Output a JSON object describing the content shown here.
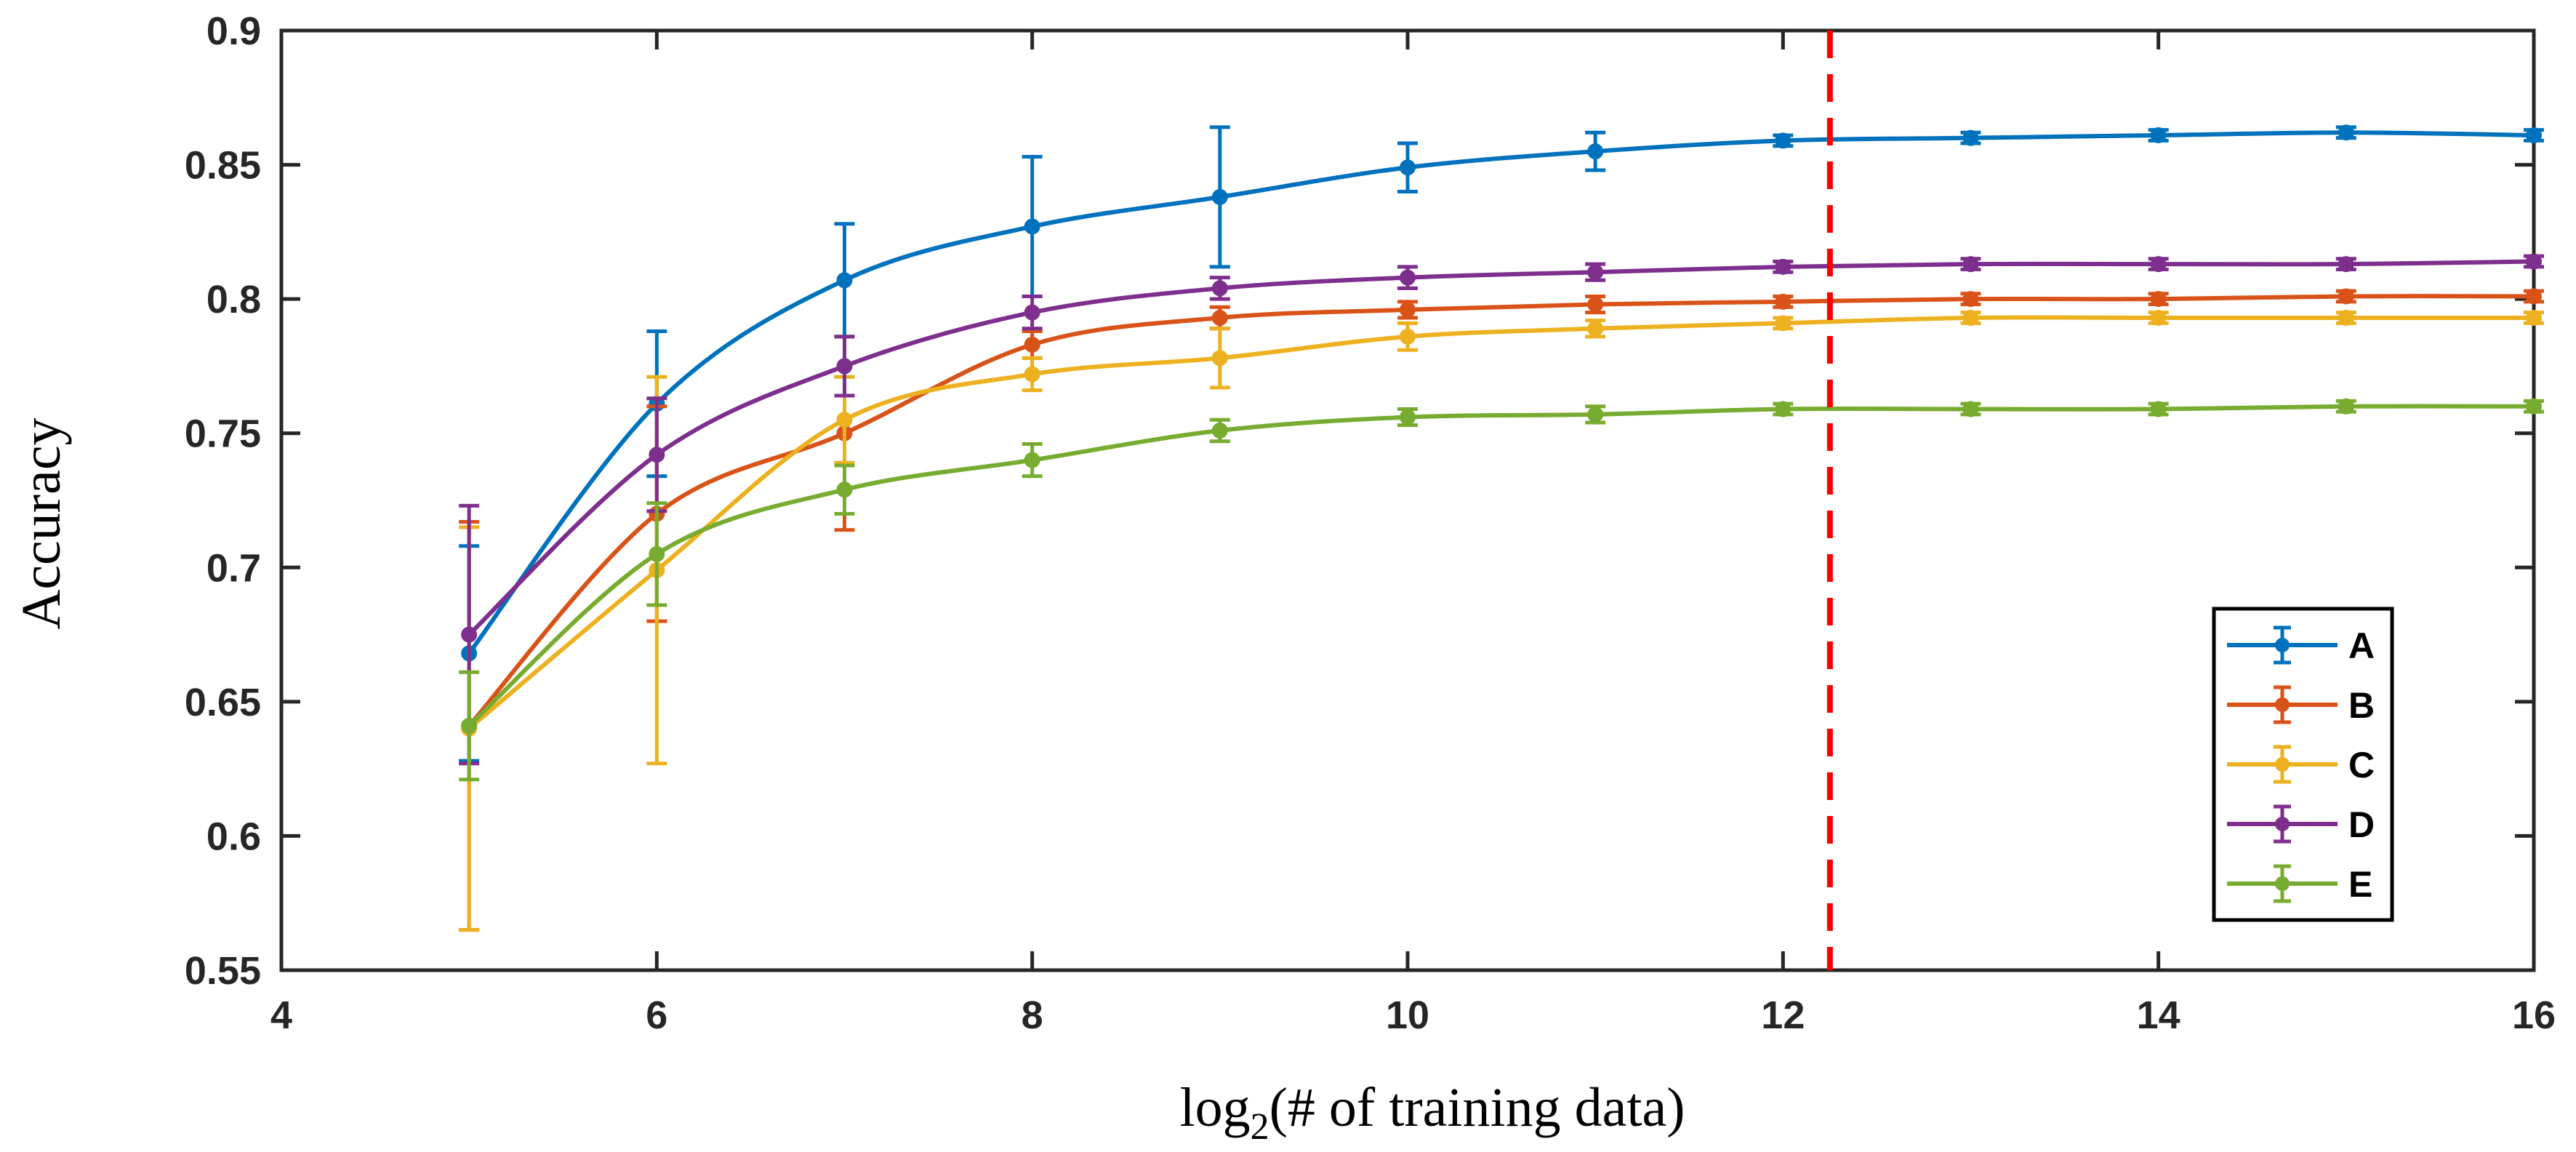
{
  "chart_data": {
    "type": "line",
    "title": "",
    "xlabel": "log",
    "xlabel_sub": "2",
    "xlabel_rest": "(# of training data)",
    "ylabel": "Accuracy",
    "xlim": [
      4,
      16
    ],
    "ylim": [
      0.55,
      0.9
    ],
    "x_ticks": [
      4,
      6,
      8,
      10,
      12,
      14,
      16
    ],
    "y_ticks": [
      0.55,
      0.6,
      0.65,
      0.7,
      0.75,
      0.8,
      0.85,
      0.9
    ],
    "x_tick_labels": [
      "4",
      "6",
      "8",
      "10",
      "12",
      "14",
      "16"
    ],
    "y_tick_labels": [
      "0.55",
      "0.6",
      "0.65",
      "0.7",
      "0.75",
      "0.8",
      "0.85",
      "0.9"
    ],
    "grid": false,
    "legend_position": "lower-right",
    "reference_line": {
      "x": 12.25,
      "style": "dashed",
      "color": "#ff0000"
    },
    "x": [
      5,
      6,
      7,
      8,
      9,
      10,
      11,
      12,
      13,
      14,
      15,
      16
    ],
    "series": [
      {
        "name": "A",
        "color": "#0072bd",
        "values": [
          0.668,
          0.761,
          0.807,
          0.827,
          0.838,
          0.849,
          0.855,
          0.859,
          0.86,
          0.861,
          0.862,
          0.861
        ],
        "errors": [
          0.04,
          0.027,
          0.021,
          0.026,
          0.026,
          0.009,
          0.007,
          0.002,
          0.002,
          0.002,
          0.002,
          0.002
        ]
      },
      {
        "name": "B",
        "color": "#d95319",
        "values": [
          0.641,
          0.72,
          0.75,
          0.783,
          0.793,
          0.796,
          0.798,
          0.799,
          0.8,
          0.8,
          0.801,
          0.801
        ],
        "errors": [
          0.076,
          0.04,
          0.036,
          0.005,
          0.004,
          0.003,
          0.003,
          0.002,
          0.002,
          0.002,
          0.002,
          0.002
        ]
      },
      {
        "name": "C",
        "color": "#edb120",
        "values": [
          0.64,
          0.699,
          0.755,
          0.772,
          0.778,
          0.786,
          0.789,
          0.791,
          0.793,
          0.793,
          0.793,
          0.793
        ],
        "errors": [
          0.075,
          0.072,
          0.016,
          0.006,
          0.011,
          0.005,
          0.003,
          0.002,
          0.002,
          0.002,
          0.002,
          0.002
        ]
      },
      {
        "name": "D",
        "color": "#7e2f8e",
        "values": [
          0.675,
          0.742,
          0.775,
          0.795,
          0.804,
          0.808,
          0.81,
          0.812,
          0.813,
          0.813,
          0.813,
          0.814
        ],
        "errors": [
          0.048,
          0.021,
          0.011,
          0.006,
          0.004,
          0.004,
          0.003,
          0.002,
          0.002,
          0.002,
          0.002,
          0.002
        ]
      },
      {
        "name": "E",
        "color": "#77ac30",
        "values": [
          0.641,
          0.705,
          0.729,
          0.74,
          0.751,
          0.756,
          0.757,
          0.759,
          0.759,
          0.759,
          0.76,
          0.76
        ],
        "errors": [
          0.02,
          0.019,
          0.009,
          0.006,
          0.004,
          0.003,
          0.003,
          0.002,
          0.002,
          0.002,
          0.002,
          0.002
        ]
      }
    ]
  }
}
